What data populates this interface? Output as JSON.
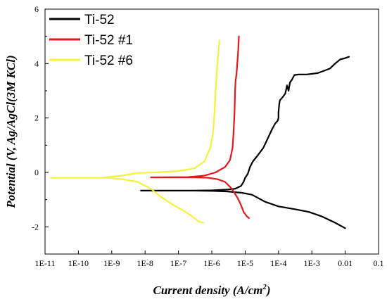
{
  "chart_data": {
    "type": "line",
    "title": "",
    "xlabel": "Current density (A/cm",
    "xlabel_sup": "2",
    "xlabel_close": ")",
    "ylabel": "Potential (V, Ag/AgCl(3M KCl)",
    "x_scale": "log",
    "xlim": [
      1e-11,
      0.1
    ],
    "ylim": [
      -3,
      6
    ],
    "x_ticks": [
      1e-11,
      1e-10,
      1e-09,
      1e-08,
      1e-07,
      1e-06,
      1e-05,
      0.0001,
      0.001,
      0.01,
      0.1
    ],
    "x_tick_labels": [
      "1E-11",
      "1E-10",
      "1E-9",
      "1E-8",
      "1E-7",
      "1E-6",
      "1E-5",
      "1E-4",
      "1E-3",
      "0.01",
      "0.1"
    ],
    "y_ticks": [
      -2,
      0,
      2,
      4,
      6
    ],
    "y_tick_labels": [
      "-2",
      "0",
      "2",
      "4",
      "6"
    ],
    "grid": false,
    "legend_position": "top-left",
    "series": [
      {
        "name": "Ti-52",
        "color": "#000000",
        "points": [
          [
            0.01,
            -2.05
          ],
          [
            0.005,
            -1.85
          ],
          [
            0.002,
            -1.62
          ],
          [
            0.0008,
            -1.45
          ],
          [
            0.0003,
            -1.35
          ],
          [
            0.0001,
            -1.25
          ],
          [
            4e-05,
            -1.08
          ],
          [
            2.5e-05,
            -0.95
          ],
          [
            1.6e-05,
            -0.82
          ],
          [
            8e-06,
            -0.75
          ],
          [
            3e-06,
            -0.7
          ],
          [
            1e-06,
            -0.68
          ],
          [
            3e-07,
            -0.67
          ],
          [
            1e-07,
            -0.67
          ],
          [
            2e-08,
            -0.67
          ],
          [
            7.5e-09,
            -0.67
          ],
          [
            3e-07,
            -0.67
          ],
          [
            1e-06,
            -0.66
          ],
          [
            3e-06,
            -0.63
          ],
          [
            5e-06,
            -0.6
          ],
          [
            7.5e-06,
            -0.5
          ],
          [
            9e-06,
            -0.35
          ],
          [
            1e-05,
            -0.2
          ],
          [
            1.2e-05,
            -0.05
          ],
          [
            1.4e-05,
            0.2
          ],
          [
            1.7e-05,
            0.4
          ],
          [
            2.3e-05,
            0.6
          ],
          [
            3.5e-05,
            0.9
          ],
          [
            5e-05,
            1.3
          ],
          [
            6.5e-05,
            1.6
          ],
          [
            8e-05,
            1.8
          ],
          [
            9.5e-05,
            1.9
          ],
          [
            0.0001,
            2.0
          ],
          [
            0.0001,
            2.2
          ],
          [
            0.000105,
            2.5
          ],
          [
            0.00011,
            2.65
          ],
          [
            0.00013,
            2.75
          ],
          [
            0.00016,
            2.9
          ],
          [
            0.00018,
            3.2
          ],
          [
            0.0002,
            3.0
          ],
          [
            0.00022,
            3.3
          ],
          [
            0.00025,
            3.4
          ],
          [
            0.0003,
            3.58
          ],
          [
            0.0004,
            3.6
          ],
          [
            0.0007,
            3.6
          ],
          [
            0.0015,
            3.65
          ],
          [
            0.0025,
            3.75
          ],
          [
            0.0035,
            3.82
          ],
          [
            0.005,
            4.0
          ],
          [
            0.007,
            4.15
          ],
          [
            0.01,
            4.2
          ],
          [
            0.013,
            4.25
          ]
        ]
      },
      {
        "name": "Ti-52 #1",
        "color": "#e0191c",
        "points": [
          [
            1.3e-05,
            -1.68
          ],
          [
            1.1e-05,
            -1.6
          ],
          [
            9e-06,
            -1.45
          ],
          [
            7.5e-06,
            -1.2
          ],
          [
            6e-06,
            -0.95
          ],
          [
            4e-06,
            -0.6
          ],
          [
            2.5e-06,
            -0.35
          ],
          [
            1.5e-06,
            -0.25
          ],
          [
            8e-07,
            -0.2
          ],
          [
            3e-07,
            -0.18
          ],
          [
            1e-07,
            -0.18
          ],
          [
            3e-08,
            -0.18
          ],
          [
            1.5e-08,
            -0.18
          ],
          [
            2e-07,
            -0.17
          ],
          [
            6e-07,
            -0.12
          ],
          [
            1.3e-06,
            0.0
          ],
          [
            2.5e-06,
            0.2
          ],
          [
            3.5e-06,
            0.45
          ],
          [
            4.2e-06,
            0.9
          ],
          [
            4.5e-06,
            1.5
          ],
          [
            4.8e-06,
            2.2
          ],
          [
            5e-06,
            3.0
          ],
          [
            5.2e-06,
            3.4
          ],
          [
            5.5e-06,
            3.6
          ],
          [
            5.8e-06,
            4.0
          ],
          [
            6.2e-06,
            4.5
          ],
          [
            6.5e-06,
            5.0
          ]
        ]
      },
      {
        "name": "Ti-52 #6",
        "color": "#f5f23a",
        "points": [
          [
            5.5e-07,
            -1.85
          ],
          [
            4e-07,
            -1.8
          ],
          [
            2.5e-07,
            -1.6
          ],
          [
            1.4e-07,
            -1.4
          ],
          [
            7e-08,
            -1.2
          ],
          [
            3e-08,
            -0.9
          ],
          [
            1.5e-08,
            -0.6
          ],
          [
            6e-09,
            -0.35
          ],
          [
            2e-09,
            -0.25
          ],
          [
            8e-10,
            -0.2
          ],
          [
            2e-10,
            -0.2
          ],
          [
            5e-11,
            -0.2
          ],
          [
            1.5e-11,
            -0.2
          ],
          [
            5e-10,
            -0.2
          ],
          [
            2e-09,
            -0.12
          ],
          [
            6e-09,
            -0.02
          ],
          [
            2e-08,
            0.0
          ],
          [
            1e-07,
            0.05
          ],
          [
            3e-07,
            0.15
          ],
          [
            6e-07,
            0.4
          ],
          [
            9e-07,
            0.9
          ],
          [
            1.1e-06,
            1.5
          ],
          [
            1.2e-06,
            2.2
          ],
          [
            1.3e-06,
            3.0
          ],
          [
            1.4e-06,
            3.6
          ],
          [
            1.5e-06,
            4.1
          ],
          [
            1.6e-06,
            4.5
          ],
          [
            1.7e-06,
            4.85
          ]
        ]
      }
    ]
  }
}
